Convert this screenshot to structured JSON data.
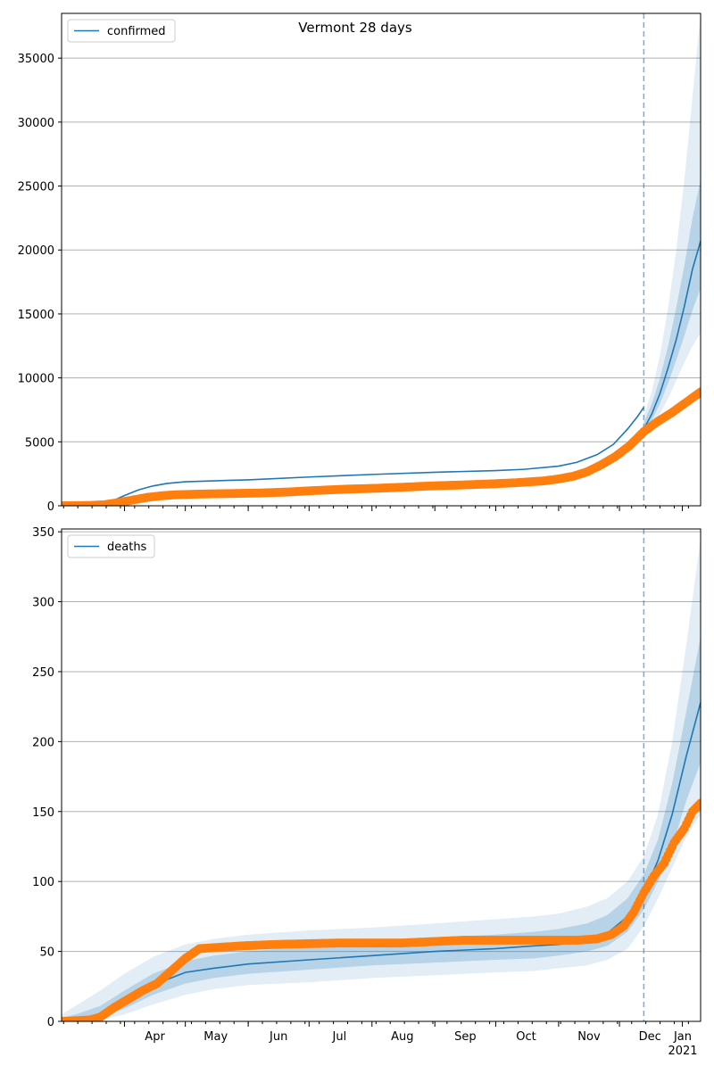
{
  "figure_title": "Vermont 28 days",
  "colors": {
    "model": "#1f77b4",
    "observed": "#ff7f0e",
    "grid": "#b0b0b0",
    "band": "#1f77b4"
  },
  "month_labels": [
    "Apr",
    "May",
    "Jun",
    "Jul",
    "Aug",
    "Sep",
    "Oct",
    "Nov",
    "Dec",
    "Jan"
  ],
  "year_label": "2021",
  "chart_data": [
    {
      "type": "line",
      "legend_label": "confirmed",
      "legend_position": "top-left",
      "grid": "horizontal",
      "x_range": [
        "2020-03-01",
        "2021-01-10"
      ],
      "forecast_start": "2020-12-13",
      "ylim": [
        0,
        38500
      ],
      "yticks": [
        0,
        5000,
        10000,
        15000,
        20000,
        25000,
        30000,
        35000
      ],
      "series": [
        {
          "role": "model",
          "legend": "confirmed",
          "x": [
            "2020-03-01",
            "2020-03-17",
            "2020-03-25",
            "2020-04-01",
            "2020-04-08",
            "2020-04-15",
            "2020-04-22",
            "2020-05-01",
            "2020-05-15",
            "2020-06-01",
            "2020-07-01",
            "2020-08-01",
            "2020-09-01",
            "2020-10-01",
            "2020-10-15",
            "2020-11-01",
            "2020-11-10",
            "2020-11-20",
            "2020-11-28",
            "2020-12-05",
            "2020-12-10",
            "2020-12-13"
          ],
          "y": [
            0,
            50,
            300,
            800,
            1250,
            1550,
            1750,
            1880,
            1950,
            2030,
            2250,
            2450,
            2620,
            2750,
            2850,
            3100,
            3400,
            4000,
            4800,
            6000,
            7000,
            7700
          ]
        },
        {
          "role": "forecast",
          "x": [
            "2020-12-13",
            "2020-12-17",
            "2020-12-21",
            "2020-12-25",
            "2020-12-29",
            "2021-01-02",
            "2021-01-06",
            "2021-01-10"
          ],
          "y": [
            6000,
            7200,
            8800,
            10800,
            13000,
            15600,
            18500,
            20700
          ],
          "band_inner_upper": [
            6500,
            8000,
            10000,
            12500,
            15500,
            18800,
            22500,
            25500
          ],
          "band_inner_lower": [
            5600,
            6700,
            8000,
            9600,
            11400,
            13300,
            15300,
            17000
          ],
          "band_outer_upper": [
            7000,
            9000,
            11800,
            15500,
            20000,
            25500,
            32000,
            38500
          ],
          "band_outer_lower": [
            5200,
            6100,
            7200,
            8400,
            9800,
            11200,
            12500,
            13500
          ]
        },
        {
          "role": "observed",
          "x": [
            "2020-03-01",
            "2020-03-15",
            "2020-03-22",
            "2020-03-29",
            "2020-04-05",
            "2020-04-12",
            "2020-04-19",
            "2020-04-26",
            "2020-05-10",
            "2020-05-24",
            "2020-06-07",
            "2020-06-21",
            "2020-07-05",
            "2020-07-19",
            "2020-08-02",
            "2020-08-16",
            "2020-08-30",
            "2020-09-13",
            "2020-09-27",
            "2020-10-11",
            "2020-10-25",
            "2020-11-01",
            "2020-11-08",
            "2020-11-15",
            "2020-11-22",
            "2020-11-29",
            "2020-12-06",
            "2020-12-13",
            "2020-12-20",
            "2020-12-27",
            "2021-01-03",
            "2021-01-10"
          ],
          "y": [
            0,
            30,
            80,
            250,
            450,
            650,
            780,
            860,
            920,
            960,
            1000,
            1080,
            1200,
            1300,
            1360,
            1450,
            1550,
            1620,
            1700,
            1800,
            1950,
            2100,
            2300,
            2650,
            3200,
            3850,
            4700,
            5800,
            6600,
            7300,
            8100,
            8900
          ]
        }
      ]
    },
    {
      "type": "line",
      "legend_label": "deaths",
      "legend_position": "top-left",
      "grid": "horizontal",
      "x_range": [
        "2020-03-01",
        "2021-01-10"
      ],
      "forecast_start": "2020-12-13",
      "ylim": [
        0,
        352
      ],
      "yticks": [
        0,
        50,
        100,
        150,
        200,
        250,
        300,
        350
      ],
      "series": [
        {
          "role": "model",
          "legend": "deaths",
          "x": [
            "2020-03-01",
            "2020-03-10",
            "2020-03-20",
            "2020-04-01",
            "2020-04-15",
            "2020-05-01",
            "2020-05-15",
            "2020-06-01",
            "2020-07-01",
            "2020-08-01",
            "2020-09-01",
            "2020-10-01",
            "2020-10-20",
            "2020-11-01",
            "2020-11-15",
            "2020-11-25",
            "2020-12-05",
            "2020-12-13",
            "2020-12-20",
            "2020-12-27",
            "2021-01-03",
            "2021-01-10"
          ],
          "y": [
            0,
            2,
            5,
            14,
            26,
            35,
            38,
            41,
            44,
            47,
            50,
            52,
            54,
            55,
            58,
            63,
            75,
            92,
            115,
            148,
            190,
            228
          ],
          "band_inner_upper": [
            2,
            6,
            11,
            22,
            34,
            43,
            47,
            50,
            54,
            57,
            60,
            62,
            64,
            66,
            70,
            76,
            88,
            105,
            130,
            170,
            222,
            275
          ],
          "band_inner_lower": [
            0,
            1,
            3,
            9,
            19,
            27,
            31,
            34,
            37,
            40,
            42,
            44,
            45,
            47,
            50,
            54,
            64,
            80,
            100,
            125,
            158,
            185
          ],
          "band_outer_upper": [
            5,
            13,
            22,
            34,
            46,
            55,
            59,
            62,
            65,
            67,
            70,
            73,
            75,
            77,
            82,
            88,
            100,
            118,
            148,
            200,
            270,
            345
          ],
          "band_outer_lower": [
            0,
            0,
            1,
            5,
            12,
            19,
            23,
            26,
            28,
            31,
            33,
            35,
            36,
            38,
            40,
            44,
            52,
            68,
            88,
            110,
            132,
            148
          ]
        },
        {
          "role": "observed",
          "x": [
            "2020-03-01",
            "2020-03-15",
            "2020-03-20",
            "2020-03-27",
            "2020-04-03",
            "2020-04-10",
            "2020-04-17",
            "2020-04-24",
            "2020-05-01",
            "2020-05-08",
            "2020-05-29",
            "2020-06-15",
            "2020-07-15",
            "2020-08-15",
            "2020-09-15",
            "2020-10-15",
            "2020-11-10",
            "2020-11-20",
            "2020-11-27",
            "2020-12-03",
            "2020-12-08",
            "2020-12-13",
            "2020-12-18",
            "2020-12-23",
            "2020-12-28",
            "2021-01-02",
            "2021-01-06",
            "2021-01-10"
          ],
          "y": [
            0,
            1,
            3,
            10,
            16,
            22,
            27,
            36,
            45,
            52,
            54,
            55,
            56,
            56,
            58,
            58,
            58,
            59,
            62,
            68,
            78,
            92,
            104,
            113,
            128,
            138,
            150,
            156
          ]
        }
      ]
    }
  ]
}
